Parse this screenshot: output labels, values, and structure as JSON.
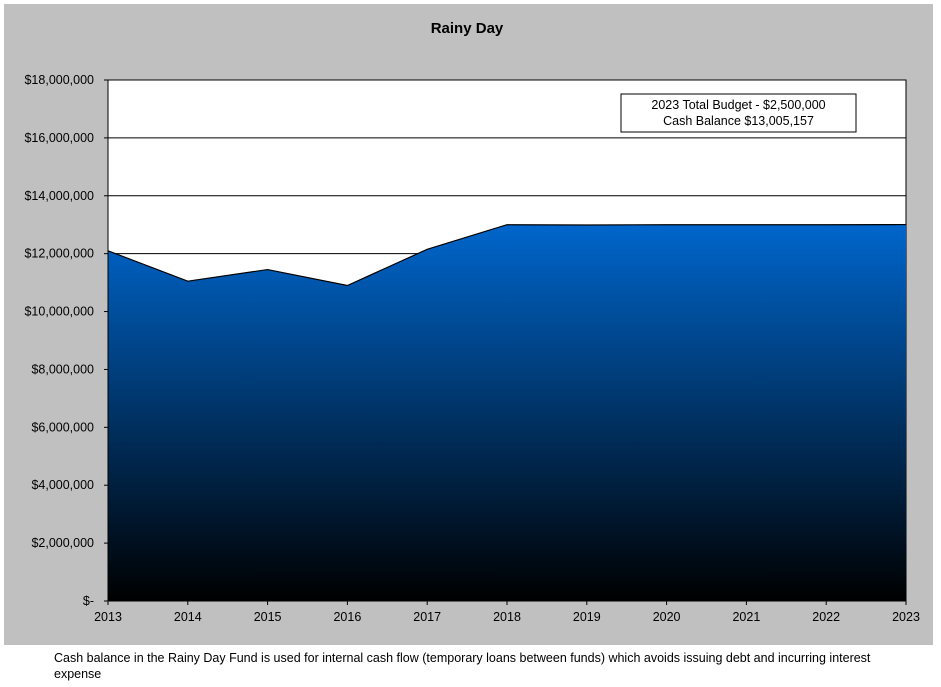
{
  "chart_data": {
    "type": "area",
    "title": "Rainy Day",
    "xlabel": "",
    "ylabel": "",
    "x": [
      "2013",
      "2014",
      "2015",
      "2016",
      "2017",
      "2018",
      "2019",
      "2020",
      "2021",
      "2022",
      "2023"
    ],
    "values": [
      12100000,
      11050000,
      11450000,
      10900000,
      12150000,
      13000000,
      12990000,
      13000000,
      13000000,
      13000000,
      13005157
    ],
    "ylim": [
      0,
      18000000
    ],
    "yticks": [
      0,
      2000000,
      4000000,
      6000000,
      8000000,
      10000000,
      12000000,
      14000000,
      16000000,
      18000000
    ],
    "ytick_labels": [
      "$-",
      "$2,000,000",
      "$4,000,000",
      "$6,000,000",
      "$8,000,000",
      "$10,000,000",
      "$12,000,000",
      "$14,000,000",
      "$16,000,000",
      "$18,000,000"
    ],
    "grid": "horizontal",
    "legend": "none",
    "annotation": {
      "line1": "2023 Total Budget - $2,500,000",
      "line2": "Cash Balance $13,005,157",
      "placement": "top-right"
    },
    "colors": {
      "area_top": "#0066cc",
      "area_bottom": "#000000",
      "panel_background": "#c0c0c0",
      "plot_background": "#ffffff"
    }
  },
  "caption": "Cash balance in the Rainy Day Fund is used for internal cash flow (temporary loans between funds) which avoids issuing debt and incurring interest expense"
}
